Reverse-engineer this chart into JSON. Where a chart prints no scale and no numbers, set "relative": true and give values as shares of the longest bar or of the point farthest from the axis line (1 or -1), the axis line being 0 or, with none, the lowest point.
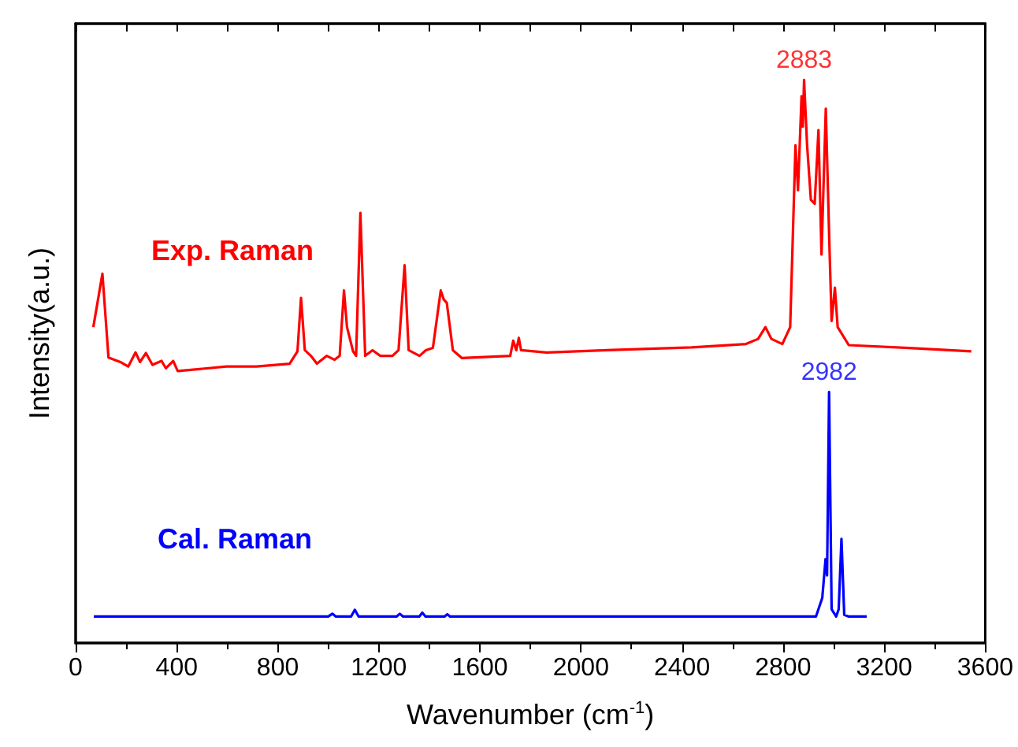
{
  "chart_data": {
    "type": "line",
    "relative": true,
    "xlabel": "Wavenumber (cm$^{-1}$)",
    "ylabel": "Intensity(a.u.)",
    "xlim": [
      0,
      3600
    ],
    "xticks": [
      0,
      400,
      800,
      1200,
      1600,
      2000,
      2400,
      2800,
      3200,
      3600
    ],
    "grid": false,
    "legend": false,
    "marker": "none",
    "line_style": "solid",
    "annotations": [
      {
        "text": "2883",
        "x": 2883,
        "y": 1.0
      },
      {
        "text": "2982",
        "x": 2982,
        "y": 0.446
      }
    ],
    "series": [
      {
        "name": "Exp. Raman",
        "color": "#ff0000",
        "x": [
          70,
          106,
          130,
          177,
          208,
          237,
          255,
          278,
          304,
          340,
          357,
          386,
          404,
          596,
          715,
          847,
          878,
          892,
          907,
          931,
          955,
          994,
          1025,
          1045,
          1062,
          1074,
          1098,
          1110,
          1127,
          1146,
          1175,
          1206,
          1254,
          1278,
          1302,
          1318,
          1361,
          1386,
          1414,
          1445,
          1457,
          1469,
          1493,
          1529,
          1720,
          1732,
          1744,
          1754,
          1763,
          1864,
          2102,
          2438,
          2653,
          2701,
          2730,
          2754,
          2797,
          2828,
          2849,
          2859,
          2873,
          2878,
          2883,
          2895,
          2910,
          2925,
          2940,
          2952,
          2969,
          2983,
          2992,
          3005,
          3016,
          3060,
          3299,
          3545
        ],
        "values": [
          0.561,
          0.656,
          0.507,
          0.499,
          0.491,
          0.516,
          0.499,
          0.515,
          0.494,
          0.501,
          0.488,
          0.501,
          0.483,
          0.491,
          0.491,
          0.496,
          0.518,
          0.613,
          0.52,
          0.51,
          0.496,
          0.51,
          0.503,
          0.51,
          0.626,
          0.561,
          0.518,
          0.51,
          0.764,
          0.51,
          0.52,
          0.51,
          0.51,
          0.52,
          0.671,
          0.52,
          0.51,
          0.52,
          0.524,
          0.626,
          0.61,
          0.604,
          0.52,
          0.506,
          0.51,
          0.537,
          0.52,
          0.542,
          0.52,
          0.516,
          0.52,
          0.525,
          0.531,
          0.54,
          0.561,
          0.54,
          0.531,
          0.561,
          0.884,
          0.804,
          0.971,
          0.917,
          1.0,
          0.884,
          0.787,
          0.78,
          0.911,
          0.69,
          0.949,
          0.712,
          0.572,
          0.631,
          0.561,
          0.529,
          0.524,
          0.518
        ]
      },
      {
        "name": "Cal. Raman",
        "color": "#0000ff",
        "x": [
          72,
          400,
          1000,
          1016,
          1030,
          1090,
          1105,
          1120,
          1270,
          1283,
          1296,
          1360,
          1372,
          1385,
          1460,
          1471,
          1482,
          2930,
          2955,
          2968,
          2974,
          2982,
          2992,
          3010,
          3020,
          3031,
          3042,
          3060,
          3131
        ],
        "values": [
          0.047,
          0.047,
          0.047,
          0.052,
          0.047,
          0.047,
          0.059,
          0.047,
          0.047,
          0.052,
          0.047,
          0.047,
          0.054,
          0.047,
          0.047,
          0.051,
          0.047,
          0.047,
          0.08,
          0.149,
          0.12,
          0.446,
          0.06,
          0.047,
          0.06,
          0.185,
          0.05,
          0.047,
          0.047
        ]
      }
    ]
  }
}
